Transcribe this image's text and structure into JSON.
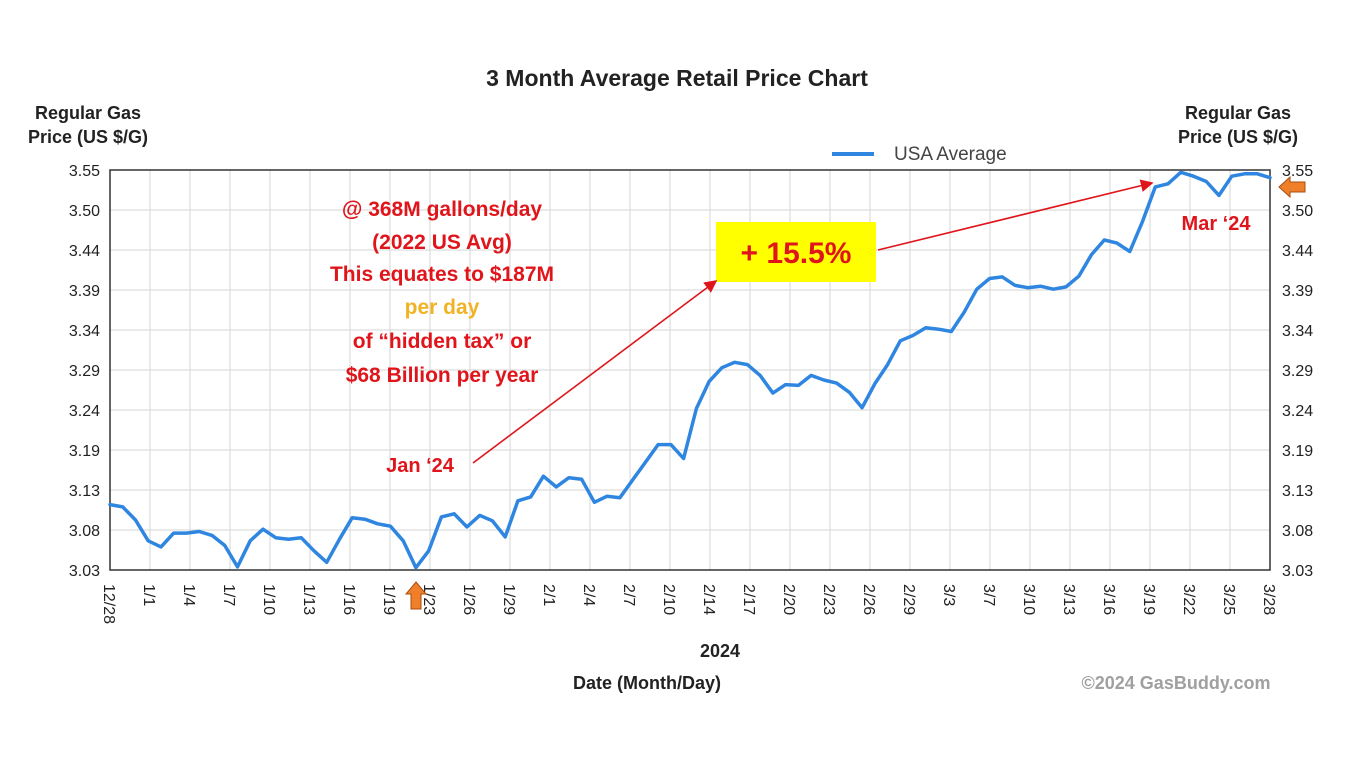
{
  "chart_data": {
    "type": "line",
    "title": "3 Month Average Retail Price Chart",
    "ylabel_left": [
      "Regular Gas",
      "Price (US $/G)"
    ],
    "ylabel_right": [
      "Regular Gas",
      "Price (US $/G)"
    ],
    "xlabel": "Date (Month/Day)",
    "x_year_label": "2024",
    "ylim": [
      3.03,
      3.55
    ],
    "y_ticks": [
      "3.55",
      "3.50",
      "3.44",
      "3.39",
      "3.34",
      "3.29",
      "3.24",
      "3.19",
      "3.13",
      "3.08",
      "3.03"
    ],
    "x_ticks": [
      "12/28",
      "1/1",
      "1/4",
      "1/7",
      "1/10",
      "1/13",
      "1/16",
      "1/19",
      "1/23",
      "1/26",
      "1/29",
      "2/1",
      "2/4",
      "2/7",
      "2/10",
      "2/14",
      "2/17",
      "2/20",
      "2/23",
      "2/26",
      "2/29",
      "3/3",
      "3/7",
      "3/10",
      "3/13",
      "3/16",
      "3/19",
      "3/22",
      "3/25",
      "3/28"
    ],
    "grid": true,
    "legend_position": "top-right",
    "series": [
      {
        "name": "USA Average",
        "color": "#2f86e0",
        "values": [
          3.115,
          3.112,
          3.095,
          3.068,
          3.06,
          3.078,
          3.078,
          3.08,
          3.075,
          3.062,
          3.034,
          3.068,
          3.083,
          3.072,
          3.07,
          3.072,
          3.055,
          3.04,
          3.07,
          3.098,
          3.096,
          3.09,
          3.087,
          3.068,
          3.033,
          3.055,
          3.099,
          3.103,
          3.086,
          3.101,
          3.094,
          3.073,
          3.12,
          3.125,
          3.152,
          3.138,
          3.15,
          3.148,
          3.118,
          3.126,
          3.124,
          3.147,
          3.17,
          3.193,
          3.193,
          3.175,
          3.24,
          3.275,
          3.293,
          3.3,
          3.297,
          3.283,
          3.26,
          3.271,
          3.27,
          3.283,
          3.277,
          3.273,
          3.261,
          3.241,
          3.272,
          3.297,
          3.328,
          3.335,
          3.345,
          3.343,
          3.34,
          3.365,
          3.395,
          3.409,
          3.411,
          3.4,
          3.397,
          3.399,
          3.395,
          3.398,
          3.412,
          3.44,
          3.459,
          3.455,
          3.444,
          3.483,
          3.528,
          3.532,
          3.547,
          3.542,
          3.535,
          3.517,
          3.542,
          3.545,
          3.545,
          3.54
        ]
      }
    ],
    "annotations": {
      "text_block": [
        "@ 368M gallons/day",
        "(2022 US Avg)",
        "This equates to $187M",
        "per day",
        "of “hidden tax” or",
        "$68 Billion per year"
      ],
      "jan_label": "Jan ‘24",
      "mar_label": "Mar ‘24",
      "percent_change": "+ 15.5%"
    },
    "copyright": "©2024 GasBuddy.com"
  },
  "colors": {
    "line": "#2f86e0",
    "annotation_red": "#e0151b",
    "annotation_gold": "#f0b323",
    "highlight": "#ffff00",
    "marker_arrow": "#f07f2a"
  }
}
